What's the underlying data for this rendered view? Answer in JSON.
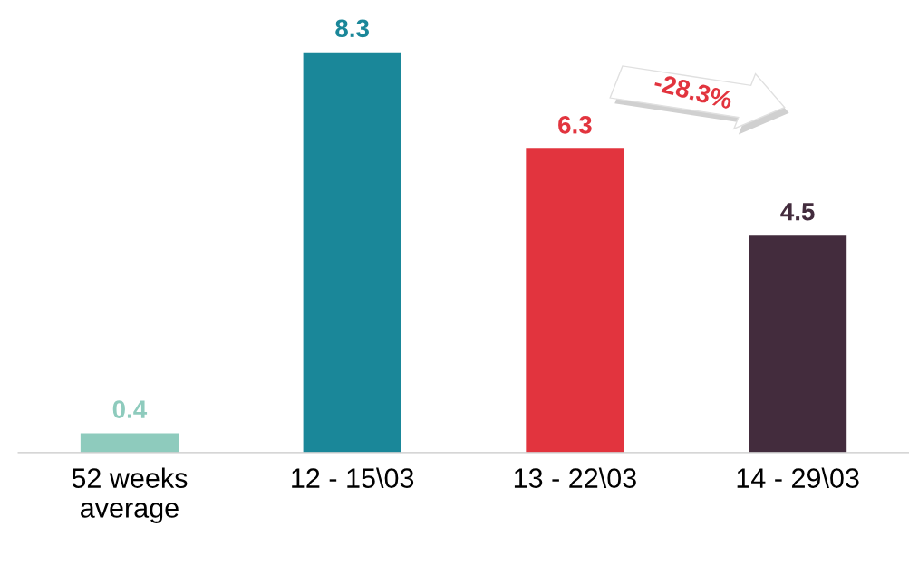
{
  "chart_data": {
    "type": "bar",
    "categories": [
      "52 weeks\naverage",
      "12 - 15\\03",
      "13 - 22\\03",
      "14 - 29\\03"
    ],
    "values": [
      0.4,
      8.3,
      6.3,
      4.5
    ],
    "colors": [
      "#8ecbbd",
      "#1a8799",
      "#e2343e",
      "#432c3d"
    ],
    "data_labels": true,
    "annotations": [
      "-28.3%"
    ],
    "grid": false,
    "legend": false
  }
}
